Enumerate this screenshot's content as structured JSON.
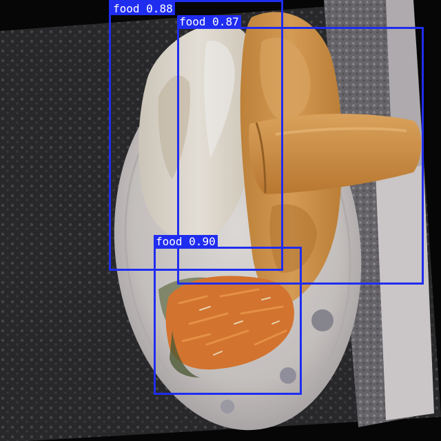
{
  "image": {
    "subject": "plate with fried fish fillet, bread and shredded carrot salad on a dark tablecloth",
    "accent_color": "#1f2df0"
  },
  "detections": [
    {
      "label": "food",
      "score": "0.88"
    },
    {
      "label": "food",
      "score": "0.87"
    },
    {
      "label": "food",
      "score": "0.90"
    }
  ]
}
